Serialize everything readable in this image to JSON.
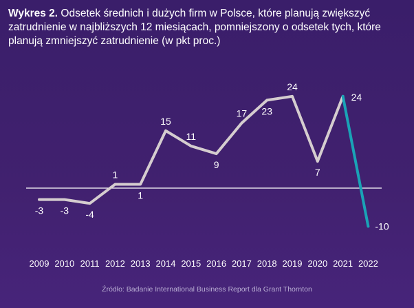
{
  "title": {
    "label": "Wykres 2.",
    "text": "Odsetek średnich i dużych firm w Polsce, które planują zwiększyć zatrudnienie w najbliższych 12 miesiącach, pomniejszony o odsetek tych, które planują zmniejszyć zatrudnienie (w pkt proc.)"
  },
  "source": "Źródło:  Badanie International Business Report dla Grant Thornton",
  "chart_data": {
    "type": "line",
    "x": [
      "2009",
      "2010",
      "2011",
      "2012",
      "2013",
      "2014",
      "2015",
      "2016",
      "2017",
      "2018",
      "2019",
      "2020",
      "2021",
      "2022"
    ],
    "series": [
      {
        "values": [
          -3,
          -3,
          -4,
          1,
          1,
          15,
          11,
          9,
          17,
          23,
          24,
          7,
          24,
          -10
        ]
      }
    ],
    "data_labels": [
      "-3",
      "-3",
      "-4",
      "1",
      "1",
      "15",
      "11",
      "9",
      "17",
      "23",
      "24",
      "7",
      "24",
      "-10"
    ],
    "ylim": [
      -10,
      24
    ],
    "grid": false,
    "colors": {
      "line": "#d5cdcf",
      "highlight": "#1aa3b6",
      "axis": "#ffffff"
    }
  }
}
